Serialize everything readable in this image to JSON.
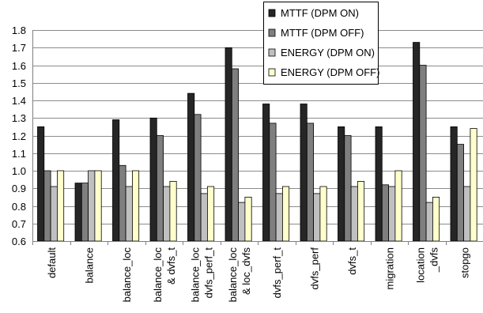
{
  "chart_data": {
    "type": "bar",
    "categories": [
      [
        "default"
      ],
      [
        "balance"
      ],
      [
        "balance_loc"
      ],
      [
        "balance_loc",
        "& dvfs_t"
      ],
      [
        "balance_loc",
        "dvfs_perf_t"
      ],
      [
        "balance_loc",
        "& loc_dvfs"
      ],
      [
        "dvfs_perf_t"
      ],
      [
        "dvfs_perf"
      ],
      [
        "dvfs_t"
      ],
      [
        "migration"
      ],
      [
        "location",
        "_dvfs"
      ],
      [
        "stopgo"
      ]
    ],
    "series": [
      {
        "name": "MTTF (DPM ON)",
        "color": "#262626",
        "values": [
          1.25,
          0.93,
          1.29,
          1.3,
          1.44,
          1.7,
          1.38,
          1.38,
          1.25,
          1.25,
          1.73,
          1.25
        ]
      },
      {
        "name": "MTTF (DPM OFF)",
        "color": "#7f7f7f",
        "values": [
          1.0,
          0.93,
          1.03,
          1.2,
          1.32,
          1.58,
          1.27,
          1.27,
          1.2,
          0.92,
          1.6,
          1.15
        ]
      },
      {
        "name": "ENERGY (DPM ON)",
        "color": "#c0c0c0",
        "values": [
          0.91,
          1.0,
          0.91,
          0.91,
          0.87,
          0.82,
          0.87,
          0.87,
          0.91,
          0.91,
          0.82,
          0.91
        ]
      },
      {
        "name": "ENERGY (DPM OFF)",
        "color": "#ffffcc",
        "values": [
          1.0,
          1.0,
          1.0,
          0.94,
          0.91,
          0.85,
          0.91,
          0.91,
          0.94,
          1.0,
          0.85,
          1.24
        ]
      }
    ],
    "yticks": [
      "0.6",
      "0.7",
      "0.8",
      "0.9",
      "1.0",
      "1.1",
      "1.2",
      "1.3",
      "1.4",
      "1.5",
      "1.6",
      "1.7",
      "1.8"
    ],
    "ylim": [
      0.6,
      1.8
    ],
    "grid": true,
    "legend_position": "top-right"
  }
}
